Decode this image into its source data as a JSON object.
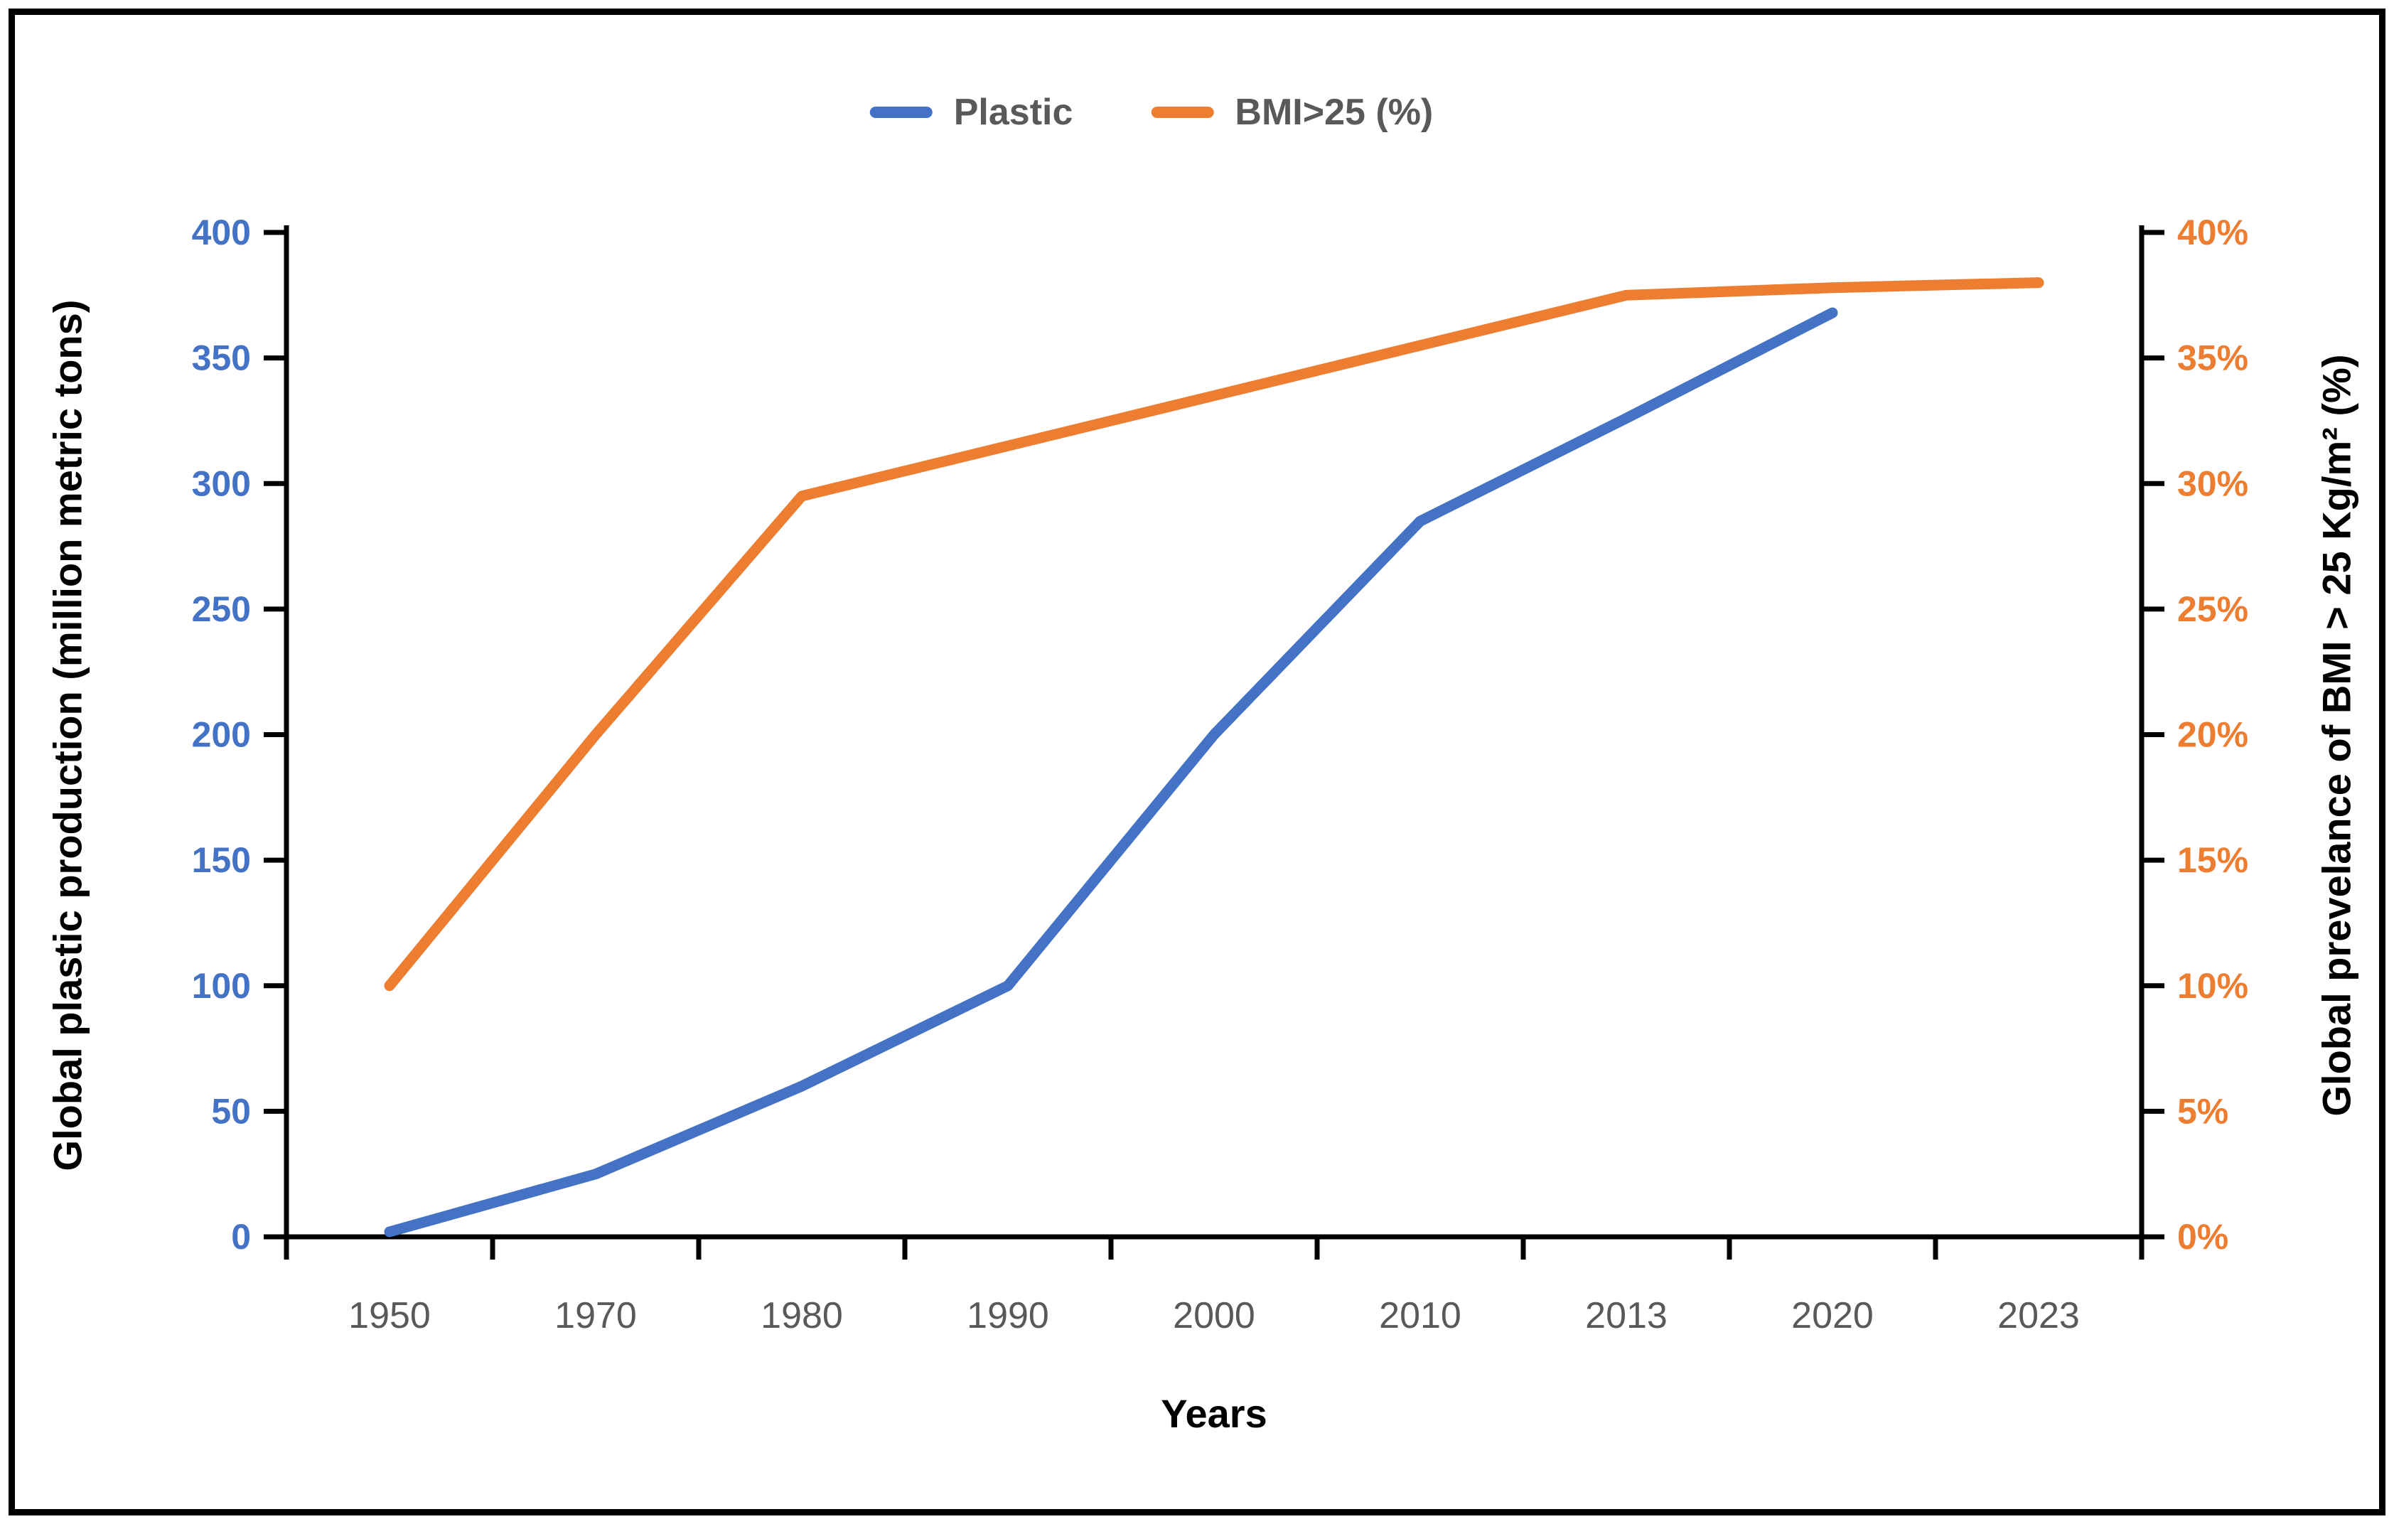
{
  "chart_data": {
    "type": "line",
    "title": "",
    "categories": [
      "1950",
      "1970",
      "1980",
      "1990",
      "2000",
      "2010",
      "2013",
      "2020",
      "2023"
    ],
    "series": [
      {
        "name": "Plastic",
        "axis": "left",
        "color": "#4472C4",
        "values": [
          2,
          25,
          60,
          100,
          200,
          285,
          326,
          368,
          null
        ]
      },
      {
        "name": "BMI>25 (%)",
        "axis": "right",
        "color": "#ED7D31",
        "values": [
          10,
          20,
          29.5,
          31.5,
          33.5,
          35.5,
          37.5,
          37.8,
          38
        ]
      }
    ],
    "xlabel": "Years",
    "ylabel_left": "Global plastic production (million metric tons)",
    "ylabel_right": "Global prevelance of BMI > 25 Kg/m² (%)",
    "ylim_left": [
      0,
      400
    ],
    "ylim_right": [
      0,
      40
    ],
    "left_tick_step": 50,
    "right_tick_step": 5,
    "grid": false,
    "legend_position": "top-center"
  },
  "axes": {
    "left": {
      "title": "Global plastic production (million metric tons)",
      "tick_labels": [
        "0",
        "50",
        "100",
        "150",
        "200",
        "250",
        "300",
        "350",
        "400"
      ],
      "color": "#4472C4"
    },
    "right": {
      "title": "Global prevelance of BMI > 25 Kg/m² (%)",
      "tick_labels": [
        "0%",
        "5%",
        "10%",
        "15%",
        "20%",
        "25%",
        "30%",
        "35%",
        "40%"
      ],
      "color": "#ED7D31"
    },
    "x": {
      "title": "Years",
      "tick_labels": [
        "1950",
        "1970",
        "1980",
        "1990",
        "2000",
        "2010",
        "2013",
        "2020",
        "2023"
      ],
      "color": "#595959"
    }
  },
  "legend": {
    "items": [
      {
        "label": "Plastic",
        "color": "#4472C4"
      },
      {
        "label": "BMI>25 (%)",
        "color": "#ED7D31"
      }
    ]
  },
  "colors": {
    "axis_line": "#000000",
    "background": "#FFFFFF",
    "border": "#000000"
  }
}
